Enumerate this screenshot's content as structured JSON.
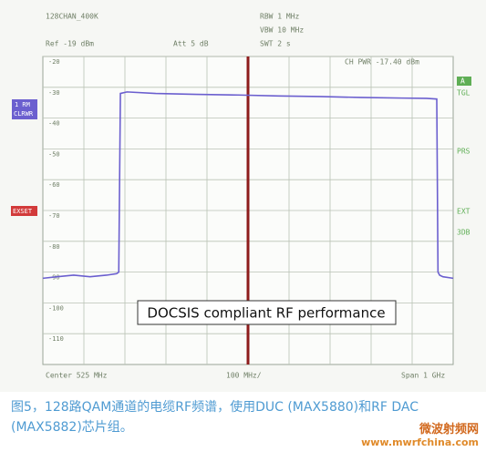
{
  "chart_data": {
    "type": "line",
    "header": {
      "trace_name": "128CHAN_400K",
      "ref": "Ref -19 dBm",
      "att": "Att 5 dB",
      "rbw": "RBW 1 MHz",
      "vbw": "VBW 10 MHz",
      "swt": "SWT 2 s",
      "ch_pwr": "CH PWR   -17.40 dBm"
    },
    "side_labels": {
      "trace_line1": "1 RM",
      "trace_line2": "CLRWR",
      "red_flag": "EXSET",
      "a": "A",
      "tgl": "TGL",
      "prs": "PRS",
      "ext": "EXT",
      "db": "3DB"
    },
    "footer": {
      "center": "Center 525 MHz",
      "div": "100 MHz/",
      "span": "Span 1 GHz"
    },
    "annotation": "DOCSIS compliant RF performance",
    "x": [
      25,
      60,
      100,
      140,
      180,
      205,
      210,
      214,
      230,
      300,
      400,
      500,
      600,
      700,
      800,
      900,
      960,
      985,
      988,
      992,
      1000,
      1025
    ],
    "series": [
      {
        "name": "1 RM CLRWR",
        "color": "#6b5fcf",
        "values": [
          -92,
          -91.5,
          -91,
          -91.5,
          -91,
          -90.5,
          -90,
          -32,
          -31.5,
          -32,
          -32.3,
          -32.5,
          -32.8,
          -33,
          -33.3,
          -33.5,
          -33.6,
          -33.8,
          -90,
          -91,
          -91.5,
          -92
        ]
      }
    ],
    "xlim": [
      25,
      1025
    ],
    "ylim": [
      -120,
      -20
    ],
    "yticks": [
      -20,
      -30,
      -40,
      -50,
      -60,
      -70,
      -80,
      -90,
      -100,
      -110
    ],
    "grid": true,
    "caption": "图5，128路QAM通道的电缆RF频谱，使用DUC (MAX5880)和RF DAC (MAX5882)芯片组。",
    "watermark": {
      "name": "微波射频网",
      "url": "www.mwrfchina.com"
    }
  }
}
